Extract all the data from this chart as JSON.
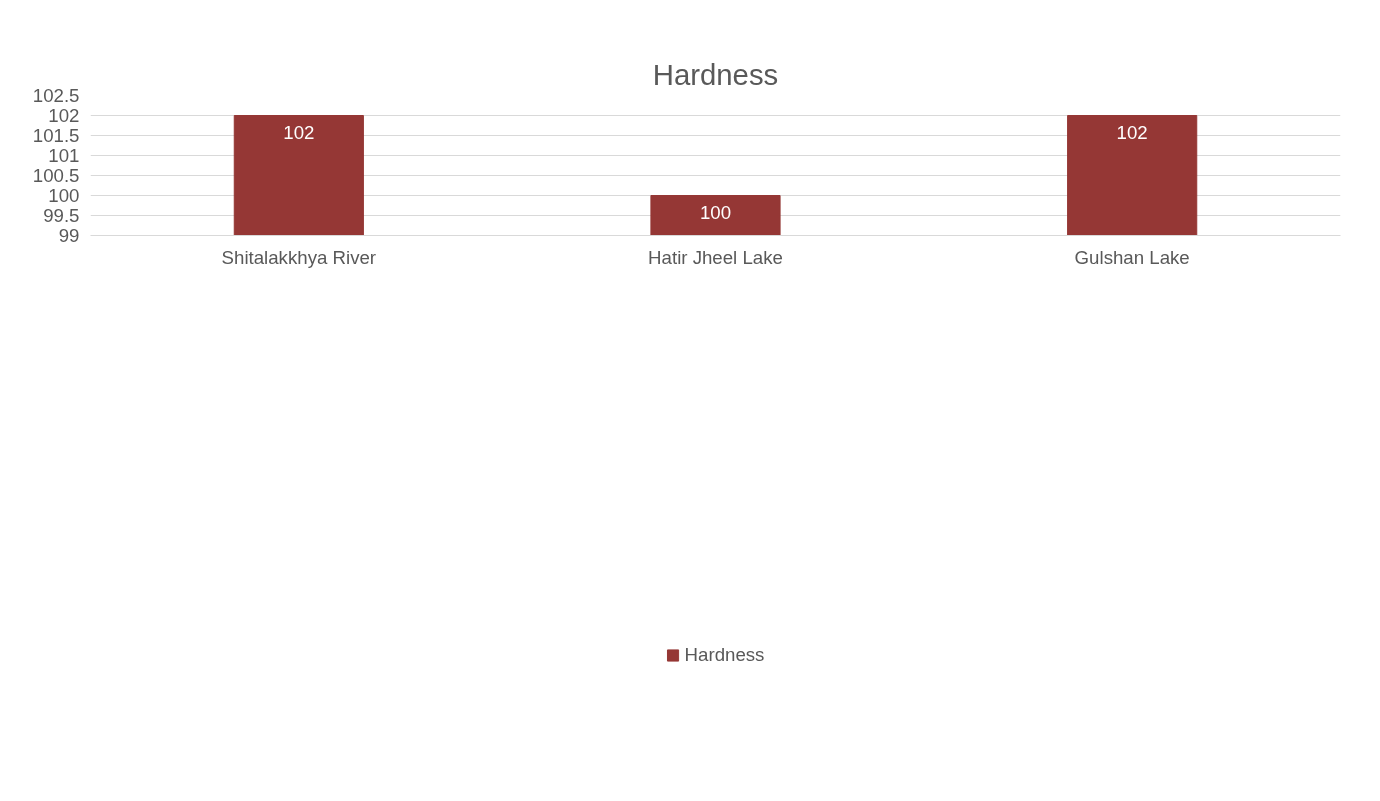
{
  "chart_data": {
    "type": "bar",
    "title": "Hardness",
    "categories": [
      "Shitalakkhya River",
      "Hatir Jheel Lake",
      "Gulshan Lake"
    ],
    "series": [
      {
        "name": "Hardness",
        "color": "#953735",
        "values": [
          102,
          100,
          102
        ]
      }
    ],
    "ylim": [
      99,
      102.5
    ],
    "yticks": [
      99,
      99.5,
      100,
      100.5,
      101,
      101.5,
      102,
      102.5
    ],
    "grid": "y",
    "legend": "bottom",
    "data_labels": true
  }
}
